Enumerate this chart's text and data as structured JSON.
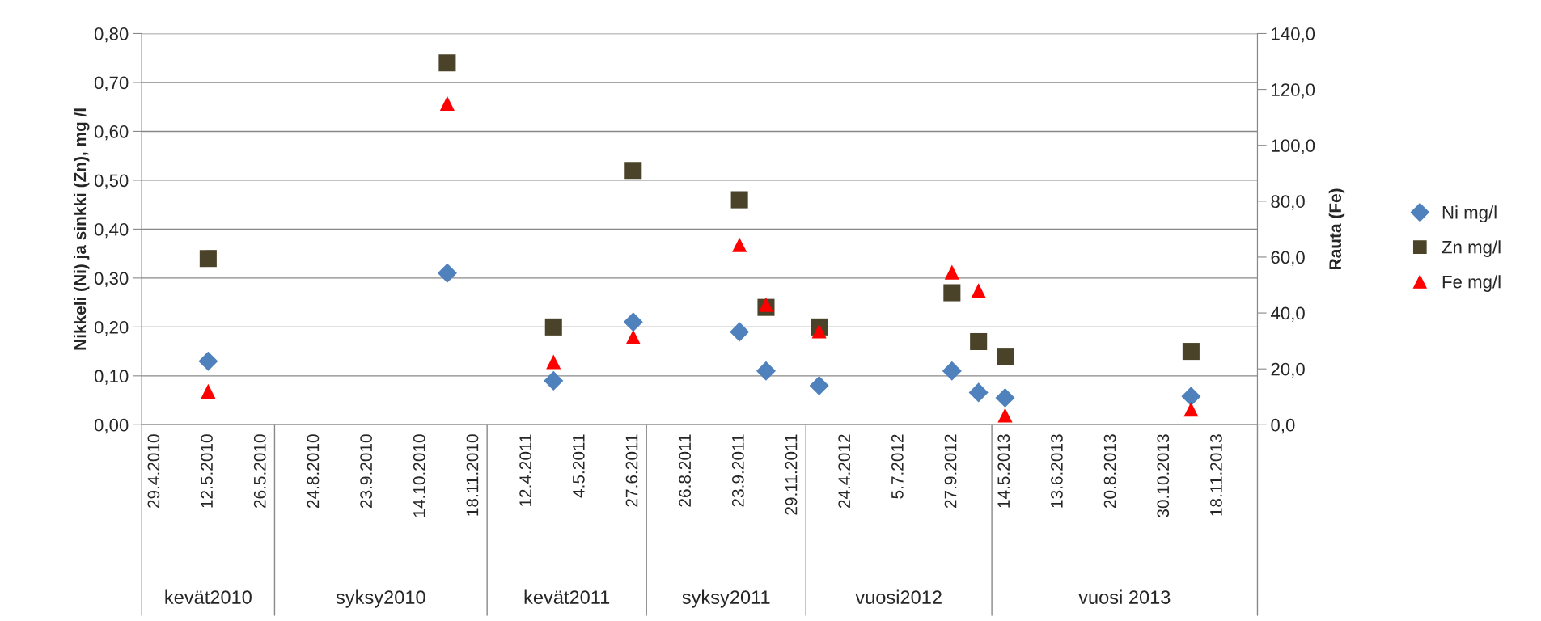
{
  "chart_data": {
    "type": "scatter",
    "categories": [
      "29.4.2010",
      null,
      "12.5.2010",
      null,
      "26.5.2010",
      null,
      "24.8.2010",
      null,
      "23.9.2010",
      null,
      "14.10.2010",
      null,
      "18.11.2010",
      null,
      "12.4.2011",
      null,
      "4.5.2011",
      null,
      "27.6.2011",
      null,
      "26.8.2011",
      null,
      "23.9.2011",
      null,
      "29.11.2011",
      null,
      "24.4.2012",
      null,
      "5.7.2012",
      null,
      "27.9.2012",
      null,
      "14.5.2013",
      null,
      "13.6.2013",
      null,
      "20.8.2013",
      null,
      "30.10.2013",
      null,
      "18.11.2013",
      null
    ],
    "series": [
      {
        "name": "Ni mg/l",
        "color": "#4f81bd",
        "marker": "diamond",
        "values": [
          null,
          null,
          0.13,
          null,
          null,
          null,
          null,
          null,
          null,
          null,
          null,
          0.31,
          null,
          null,
          null,
          0.09,
          null,
          null,
          0.21,
          null,
          null,
          null,
          0.19,
          0.11,
          null,
          0.08,
          null,
          null,
          null,
          null,
          0.11,
          0.066,
          0.055,
          null,
          null,
          null,
          null,
          null,
          null,
          0.058,
          null,
          null
        ]
      },
      {
        "name": "Zn mg/l",
        "color": "#4a4329",
        "marker": "square",
        "values": [
          null,
          null,
          0.34,
          null,
          null,
          null,
          null,
          null,
          null,
          null,
          null,
          0.74,
          null,
          null,
          null,
          0.2,
          null,
          null,
          0.52,
          null,
          null,
          null,
          0.46,
          0.24,
          null,
          0.2,
          null,
          null,
          null,
          null,
          0.27,
          0.17,
          0.14,
          null,
          null,
          null,
          null,
          null,
          null,
          0.15,
          null,
          null
        ]
      },
      {
        "name": "Fe mg/l",
        "color": "#ff0000",
        "marker": "triangle",
        "axis": "y2",
        "values": [
          null,
          null,
          12,
          null,
          null,
          null,
          null,
          null,
          null,
          null,
          null,
          115,
          null,
          null,
          null,
          22.5,
          null,
          null,
          31.4,
          null,
          null,
          null,
          64.4,
          43,
          null,
          33.5,
          null,
          null,
          null,
          null,
          54.6,
          48,
          3.4,
          null,
          null,
          null,
          null,
          null,
          null,
          5.5,
          null,
          null
        ]
      }
    ],
    "ylabel": "Nikkeli (Ni) ja sinkki (Zn), mg /l",
    "y2label": "Rauta (Fe)",
    "ylim": [
      0,
      0.8
    ],
    "yticks": [
      {
        "value": 0,
        "label": "0,00"
      },
      {
        "value": 0.1,
        "label": "0,10"
      },
      {
        "value": 0.2,
        "label": "0,20"
      },
      {
        "value": 0.3,
        "label": "0,30"
      },
      {
        "value": 0.4,
        "label": "0,40"
      },
      {
        "value": 0.5,
        "label": "0,50"
      },
      {
        "value": 0.6,
        "label": "0,60"
      },
      {
        "value": 0.7,
        "label": "0,70"
      },
      {
        "value": 0.8,
        "label": "0,80"
      }
    ],
    "y2lim": [
      0,
      140
    ],
    "y2ticks": [
      {
        "value": 0,
        "label": "0,0"
      },
      {
        "value": 20,
        "label": "20,0"
      },
      {
        "value": 40,
        "label": "40,0"
      },
      {
        "value": 60,
        "label": "60,0"
      },
      {
        "value": 80,
        "label": "80,0"
      },
      {
        "value": 100,
        "label": "100,0"
      },
      {
        "value": 120,
        "label": "120,0"
      },
      {
        "value": 140,
        "label": "140,0"
      }
    ],
    "annotations": [
      "kevät2010",
      "syksy2010",
      "kevät2011",
      "syksy2011",
      "vuosi2012",
      "vuosi 2013"
    ],
    "grid": "y",
    "legend": "right"
  }
}
